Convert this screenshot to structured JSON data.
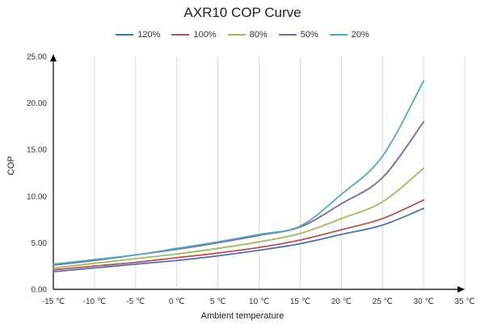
{
  "chart_data": {
    "type": "line",
    "title": "AXR10 COP Curve",
    "xlabel": "Ambient temperature",
    "ylabel": "COP",
    "x_ticks": [
      "-15 ℃",
      "-10 ℃",
      "-5 ℃",
      "0 ℃",
      "5 ℃",
      "10 ℃",
      "15 ℃",
      "20 ℃",
      "25 ℃",
      "30 ℃",
      "35 ℃"
    ],
    "y_ticks": [
      "0.00",
      "5.00",
      "10.00",
      "15.00",
      "20.00",
      "25.00"
    ],
    "xlim": [
      -15,
      35
    ],
    "ylim": [
      0,
      25
    ],
    "grid": "vertical",
    "legend_position": "top",
    "x": [
      -15,
      -10,
      -5,
      0,
      5,
      10,
      15,
      20,
      25,
      30
    ],
    "series": [
      {
        "name": "120%",
        "color": "#4472c4",
        "values": [
          1.9,
          2.3,
          2.7,
          3.1,
          3.6,
          4.2,
          4.9,
          5.9,
          6.9,
          8.7
        ]
      },
      {
        "name": "100%",
        "color": "#c0504d",
        "values": [
          2.1,
          2.5,
          2.9,
          3.4,
          3.9,
          4.5,
          5.3,
          6.4,
          7.6,
          9.6
        ]
      },
      {
        "name": "80%",
        "color": "#9bbb59",
        "values": [
          2.3,
          2.8,
          3.3,
          3.8,
          4.4,
          5.1,
          6.0,
          7.6,
          9.4,
          13.0
        ]
      },
      {
        "name": "50%",
        "color": "#8064a2",
        "values": [
          2.6,
          3.1,
          3.7,
          4.3,
          5.0,
          5.8,
          6.7,
          9.2,
          12.0,
          18.0
        ]
      },
      {
        "name": "20%",
        "color": "#4bacc6",
        "values": [
          2.7,
          3.2,
          3.7,
          4.4,
          5.1,
          5.9,
          6.8,
          10.2,
          14.3,
          22.4
        ]
      }
    ]
  }
}
